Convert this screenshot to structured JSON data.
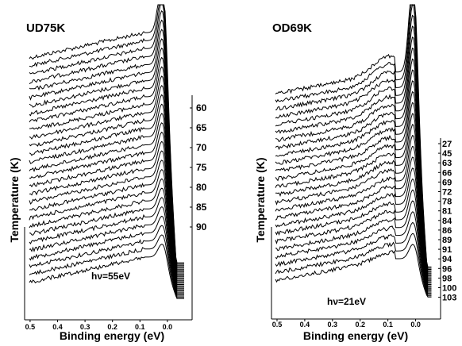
{
  "chart_data": [
    {
      "type": "line",
      "title": "UD75K",
      "xlabel": "Binding energy (eV)",
      "ylabel": "Temperature (K)",
      "x_ticks": [
        "0.5",
        "0.4",
        "0.3",
        "0.2",
        "0.1",
        "0.0"
      ],
      "xlim": [
        0.52,
        -0.09
      ],
      "x_reversed": true,
      "temperature_labels": [
        "60",
        "65",
        "70",
        "75",
        "80",
        "85",
        "90"
      ],
      "n_curves": 29,
      "peak_energy": 0.02,
      "annotation": "hν=55eV"
    },
    {
      "type": "line",
      "title": "OD69K",
      "xlabel": "Binding energy (eV)",
      "ylabel": "Temperature (K)",
      "x_ticks": [
        "0.5",
        "0.4",
        "0.3",
        "0.2",
        "0.1",
        "0.0"
      ],
      "xlim": [
        0.52,
        -0.09
      ],
      "x_reversed": true,
      "temperature_labels": [
        "27",
        "45",
        "63",
        "66",
        "69",
        "72",
        "78",
        "81",
        "84",
        "86",
        "89",
        "91",
        "94",
        "96",
        "98",
        "100",
        "103"
      ],
      "n_curves": 25,
      "peak_energy": 0.01,
      "annotation": "hν=21eV"
    }
  ]
}
